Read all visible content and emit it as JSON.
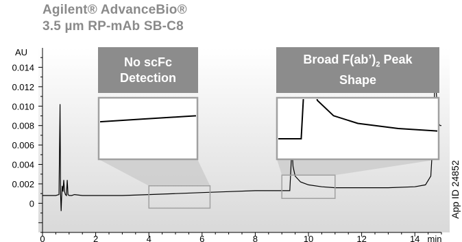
{
  "title": {
    "line1": "Agilent® AdvanceBio®",
    "line2": "3.5 µm RP-mAb SB-C8"
  },
  "callouts": [
    {
      "line1": "No scFc",
      "line2": "Detection"
    },
    {
      "line1": "Broad F(ab’)",
      "sub": "2",
      "line1_end": " Peak",
      "line2": "Shape"
    }
  ],
  "app_id": "App ID 24852",
  "colors": {
    "trace": "#000000",
    "callout_fill": "#8c8c8c",
    "title": "#8a8a8a",
    "zoom_frame": "#a0a0a0",
    "zoom_fan": "#c9c9c9",
    "plot_background_top": "#ffffff",
    "plot_background_bottom": "#d9d9d9"
  },
  "chart_data": {
    "type": "line",
    "title": "Agilent® AdvanceBio® 3.5 µm RP-mAb SB-C8",
    "xlabel": "min",
    "ylabel": "AU",
    "xlim": [
      0,
      15
    ],
    "ylim": [
      -0.003,
      0.016
    ],
    "x_ticks": [
      "0",
      "2",
      "4",
      "6",
      "8",
      "10",
      "12",
      "14"
    ],
    "y_ticks": [
      "0",
      "0.002",
      "0.004",
      "0.006",
      "0.008",
      "0.010",
      "0.012",
      "0.014"
    ],
    "grid": false,
    "x": [
      0.0,
      0.5,
      0.62,
      0.66,
      0.68,
      0.7,
      0.72,
      0.74,
      0.77,
      0.8,
      0.83,
      0.86,
      0.9,
      0.93,
      0.96,
      1.0,
      1.1,
      1.2,
      1.5,
      2.0,
      3.0,
      4.0,
      5.0,
      6.0,
      7.0,
      8.0,
      9.0,
      9.3,
      9.36,
      9.38,
      9.4,
      9.42,
      9.5,
      9.7,
      10.0,
      10.5,
      11.0,
      12.0,
      13.0,
      14.0,
      14.4,
      14.6,
      14.7,
      14.75,
      14.8,
      14.85,
      14.9,
      14.95,
      15.0
    ],
    "y": [
      0.0008,
      0.0008,
      0.0009,
      0.0102,
      0.0009,
      -0.0008,
      0.0006,
      0.0018,
      0.0012,
      0.0024,
      0.0012,
      0.0009,
      0.0008,
      0.0024,
      0.0009,
      0.0008,
      0.0008,
      0.0009,
      0.0008,
      0.0008,
      0.0008,
      0.0009,
      0.001,
      0.0011,
      0.0012,
      0.0013,
      0.0013,
      0.0013,
      0.0048,
      0.0052,
      0.0048,
      0.0038,
      0.0028,
      0.0022,
      0.0019,
      0.0017,
      0.0016,
      0.0016,
      0.0016,
      0.0017,
      0.0019,
      0.0028,
      0.0075,
      0.0124,
      0.0118,
      0.0095,
      0.0082,
      0.008,
      0.008
    ],
    "zoom_regions": [
      {
        "label": "No scFc Detection",
        "x_range": [
          4.0,
          6.3
        ],
        "y_range": [
          -0.0005,
          0.0018
        ]
      },
      {
        "label": "Broad F(ab’)2 Peak Shape",
        "x_range": [
          9.0,
          11.0
        ],
        "y_range": [
          0.0005,
          0.0029
        ]
      }
    ]
  }
}
